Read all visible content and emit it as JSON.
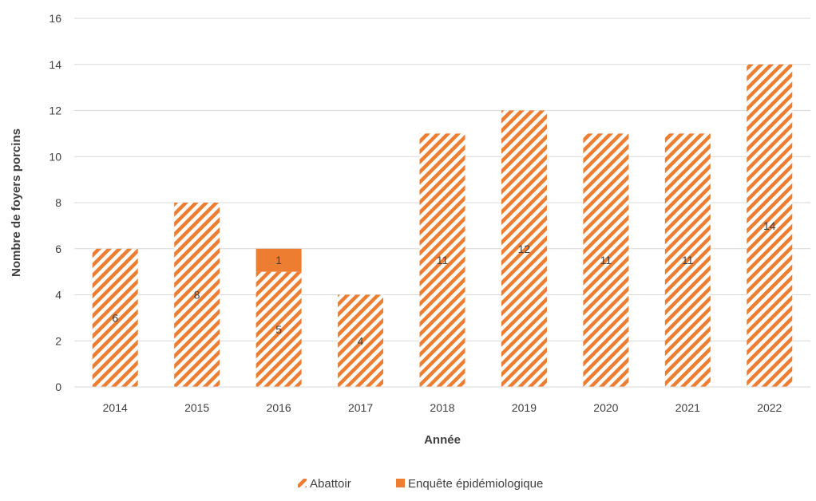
{
  "chart_data": {
    "type": "bar",
    "stacked": true,
    "categories": [
      "2014",
      "2015",
      "2016",
      "2017",
      "2018",
      "2019",
      "2020",
      "2021",
      "2022"
    ],
    "series": [
      {
        "name": "Abattoir",
        "values": [
          6,
          8,
          5,
          4,
          11,
          12,
          11,
          11,
          14
        ],
        "color": "#ED7D31",
        "pattern": "diagonal-stripes",
        "labels": [
          "6",
          "8",
          "5",
          "4",
          "11",
          "12",
          "11",
          "11",
          "14"
        ]
      },
      {
        "name": "Enquête épidémiologique",
        "values": [
          0,
          0,
          1,
          0,
          0,
          0,
          0,
          0,
          0
        ],
        "color": "#ED7D31",
        "pattern": "solid",
        "labels": [
          "",
          "",
          "1",
          "",
          "",
          "",
          "",
          "",
          ""
        ]
      }
    ],
    "xlabel": "Année",
    "ylabel": "Nombre de foyers porcins",
    "ylim": [
      0,
      16
    ],
    "yticks": [
      "0",
      "2",
      "4",
      "6",
      "8",
      "10",
      "12",
      "14",
      "16"
    ],
    "grid": true,
    "legend_position": "bottom"
  }
}
